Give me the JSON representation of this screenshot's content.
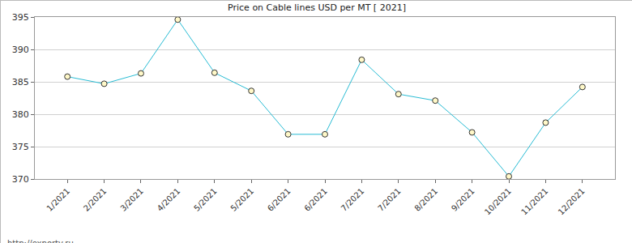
{
  "chart_data": {
    "type": "line",
    "title": "Price on Cable lines USD per MT [ 2021]",
    "categories": [
      "1/2021",
      "2/2021",
      "3/2021",
      "4/2021",
      "5/2021",
      "5/2021",
      "6/2021",
      "6/2021",
      "7/2021",
      "7/2021",
      "8/2021",
      "9/2021",
      "10/2021",
      "11/2021",
      "12/2021"
    ],
    "values": [
      385.8,
      384.7,
      386.3,
      394.6,
      386.4,
      383.6,
      376.9,
      376.9,
      388.4,
      383.1,
      382.1,
      377.2,
      370.4,
      378.7,
      384.2
    ],
    "color": "#29bcd4",
    "marker": "circle",
    "ylim": [
      370,
      395
    ],
    "yticks": [
      370,
      375,
      380,
      385,
      390,
      395
    ],
    "grid": true,
    "annotations": [
      "http://exportv.ru"
    ]
  }
}
